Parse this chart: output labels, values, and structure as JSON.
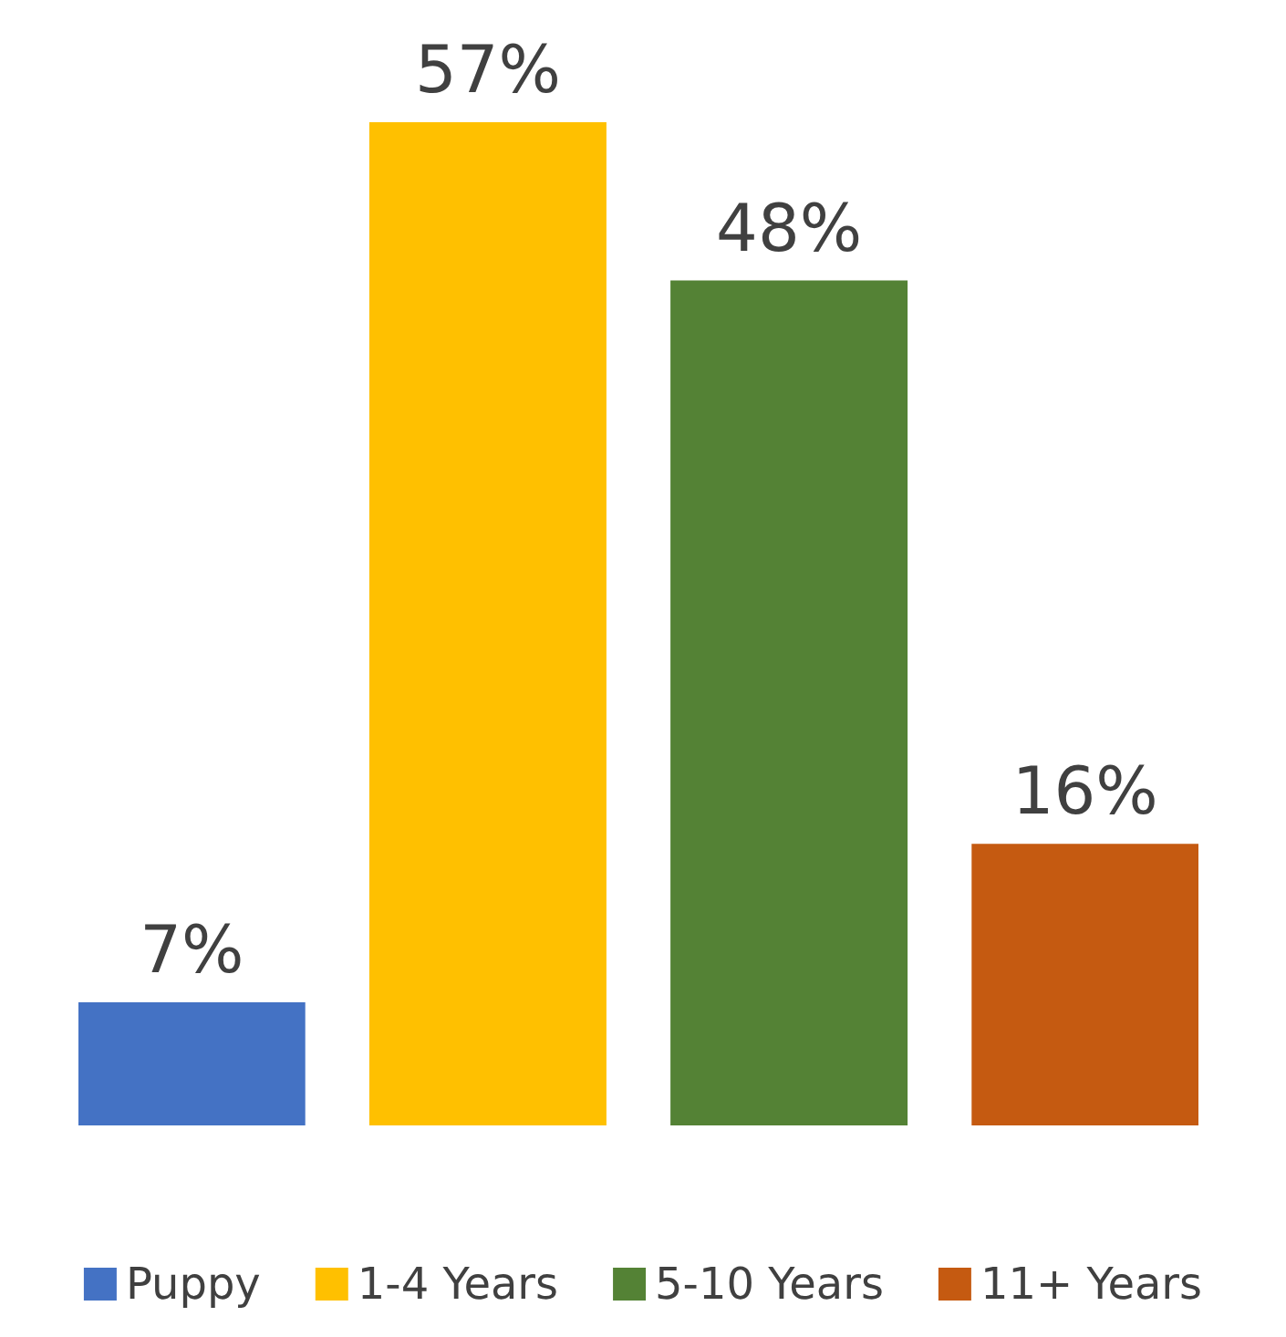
{
  "chart_data": {
    "type": "bar",
    "categories": [
      null
    ],
    "series": [
      {
        "name": "Puppy",
        "color": "#4472c4",
        "values": [
          7
        ],
        "value_labels": [
          "7%"
        ]
      },
      {
        "name": "1-4 Years",
        "color": "#ffc000",
        "values": [
          57
        ],
        "value_labels": [
          "57%"
        ]
      },
      {
        "name": "5-10 Years",
        "color": "#548235",
        "values": [
          48
        ],
        "value_labels": [
          "48%"
        ]
      },
      {
        "name": "11+ Years",
        "color": "#c55a11",
        "values": [
          16
        ],
        "value_labels": [
          "16%"
        ]
      }
    ],
    "legend": "bottom"
  }
}
